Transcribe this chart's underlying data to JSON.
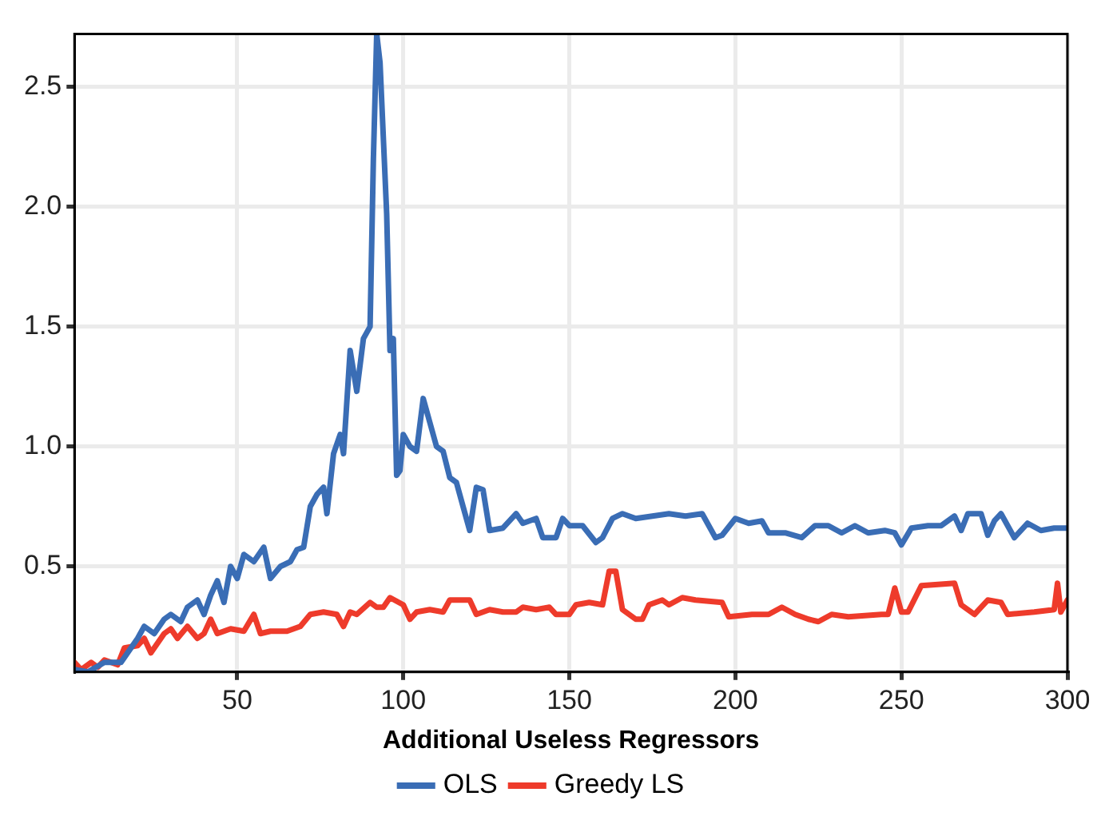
{
  "chart_data": {
    "type": "line",
    "xlabel": "Additional Useless Regressors",
    "xlim": [
      1,
      300
    ],
    "xticks": [
      50,
      100,
      150,
      200,
      250,
      300
    ],
    "ylim": [
      0.06,
      2.72
    ],
    "yticks": [
      0.5,
      {
        "value": 1,
        "label": "1.0"
      },
      1.5,
      {
        "value": 2,
        "label": "2.0"
      },
      2.5
    ],
    "grid": true,
    "legend": "bottom",
    "marker": "none",
    "line_style": "solid",
    "series": [
      {
        "name": "OLS",
        "color": "#3a6db5",
        "x": [
          1,
          5,
          10,
          15,
          20,
          22,
          25,
          28,
          30,
          33,
          35,
          38,
          40,
          42,
          44,
          46,
          48,
          50,
          52,
          55,
          58,
          60,
          63,
          66,
          68,
          70,
          72,
          74,
          76,
          77,
          79,
          81,
          82,
          84,
          86,
          88,
          90,
          91,
          92,
          93,
          95,
          96,
          97,
          98,
          99,
          100,
          102,
          104,
          106,
          108,
          110,
          112,
          114,
          116,
          118,
          120,
          122,
          124,
          126,
          130,
          134,
          136,
          140,
          142,
          146,
          148,
          150,
          154,
          158,
          160,
          163,
          166,
          170,
          175,
          180,
          185,
          190,
          194,
          196,
          200,
          204,
          208,
          210,
          215,
          220,
          224,
          228,
          232,
          236,
          240,
          245,
          248,
          250,
          253,
          258,
          262,
          266,
          268,
          270,
          274,
          276,
          278,
          280,
          284,
          288,
          292,
          296,
          300
        ],
        "values": [
          0.07,
          0.06,
          0.1,
          0.1,
          0.2,
          0.25,
          0.22,
          0.28,
          0.3,
          0.27,
          0.33,
          0.36,
          0.3,
          0.38,
          0.44,
          0.35,
          0.5,
          0.45,
          0.55,
          0.52,
          0.58,
          0.45,
          0.5,
          0.52,
          0.57,
          0.58,
          0.75,
          0.8,
          0.83,
          0.72,
          0.97,
          1.05,
          0.97,
          1.4,
          1.23,
          1.45,
          1.5,
          2.2,
          2.72,
          2.6,
          1.97,
          1.4,
          1.45,
          0.88,
          0.9,
          1.05,
          1.0,
          0.98,
          1.2,
          1.1,
          1.0,
          0.98,
          0.87,
          0.85,
          0.75,
          0.65,
          0.83,
          0.82,
          0.65,
          0.66,
          0.72,
          0.68,
          0.7,
          0.62,
          0.62,
          0.7,
          0.67,
          0.67,
          0.6,
          0.62,
          0.7,
          0.72,
          0.7,
          0.71,
          0.72,
          0.71,
          0.72,
          0.62,
          0.63,
          0.7,
          0.68,
          0.69,
          0.64,
          0.64,
          0.62,
          0.67,
          0.67,
          0.64,
          0.67,
          0.64,
          0.65,
          0.64,
          0.59,
          0.66,
          0.67,
          0.67,
          0.71,
          0.65,
          0.72,
          0.72,
          0.63,
          0.69,
          0.72,
          0.62,
          0.68,
          0.65,
          0.66,
          0.66
        ]
      },
      {
        "name": "Greedy LS",
        "color": "#ee3b2b",
        "x": [
          1,
          3,
          6,
          8,
          10,
          14,
          16,
          20,
          22,
          24,
          28,
          30,
          32,
          35,
          38,
          40,
          42,
          44,
          48,
          52,
          55,
          57,
          60,
          65,
          69,
          72,
          76,
          80,
          82,
          84,
          86,
          90,
          92,
          94,
          96,
          100,
          102,
          104,
          108,
          112,
          114,
          120,
          122,
          126,
          130,
          134,
          136,
          140,
          144,
          146,
          150,
          152,
          156,
          160,
          162,
          164,
          166,
          170,
          172,
          174,
          178,
          180,
          184,
          188,
          196,
          198,
          205,
          210,
          214,
          218,
          222,
          225,
          229,
          234,
          244,
          246,
          248,
          250,
          252,
          256,
          266,
          268,
          272,
          276,
          280,
          282,
          290,
          296,
          297,
          298,
          300
        ],
        "values": [
          0.1,
          0.07,
          0.1,
          0.08,
          0.11,
          0.09,
          0.16,
          0.17,
          0.2,
          0.14,
          0.22,
          0.24,
          0.2,
          0.25,
          0.2,
          0.22,
          0.28,
          0.22,
          0.24,
          0.23,
          0.3,
          0.22,
          0.23,
          0.23,
          0.25,
          0.3,
          0.31,
          0.3,
          0.25,
          0.31,
          0.3,
          0.35,
          0.33,
          0.33,
          0.37,
          0.34,
          0.28,
          0.31,
          0.32,
          0.31,
          0.36,
          0.36,
          0.3,
          0.32,
          0.31,
          0.31,
          0.33,
          0.32,
          0.33,
          0.3,
          0.3,
          0.34,
          0.35,
          0.34,
          0.48,
          0.48,
          0.32,
          0.28,
          0.28,
          0.34,
          0.36,
          0.34,
          0.37,
          0.36,
          0.35,
          0.29,
          0.3,
          0.3,
          0.33,
          0.3,
          0.28,
          0.27,
          0.3,
          0.29,
          0.3,
          0.3,
          0.41,
          0.31,
          0.31,
          0.42,
          0.43,
          0.34,
          0.3,
          0.36,
          0.35,
          0.3,
          0.31,
          0.32,
          0.43,
          0.31,
          0.36
        ]
      }
    ]
  }
}
